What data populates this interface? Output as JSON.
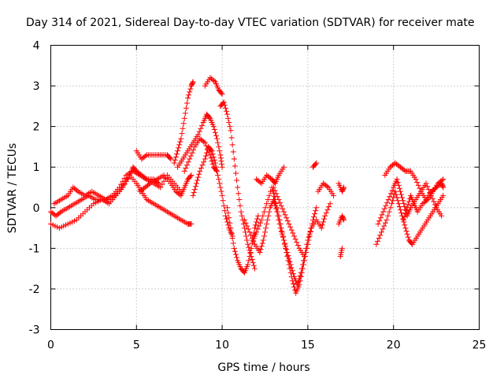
{
  "chart_data": {
    "type": "scatter",
    "title": "Day 314 of 2021, Sidereal Day-to-day VTEC variation (SDTVAR) for receiver mate",
    "xlabel": "GPS time / hours",
    "ylabel": "SDTVAR / TECUs",
    "xlim": [
      0,
      25
    ],
    "ylim": [
      -3,
      4
    ],
    "xticks": [
      "0",
      "5",
      "10",
      "15",
      "20",
      "25"
    ],
    "yticks": [
      "-3",
      "-2",
      "-1",
      "0",
      "1",
      "2",
      "3",
      "4"
    ],
    "grid": true,
    "marker": "+",
    "color": "#ff0000",
    "series": [
      {
        "points": [
          [
            0.0,
            -0.4
          ],
          [
            0.5,
            -0.5
          ],
          [
            1.0,
            -0.4
          ],
          [
            1.5,
            -0.3
          ],
          [
            2.0,
            -0.1
          ],
          [
            2.5,
            0.1
          ],
          [
            3.0,
            0.2
          ],
          [
            3.5,
            0.2
          ],
          [
            4.0,
            0.4
          ],
          [
            4.3,
            0.6
          ],
          [
            4.6,
            0.8
          ],
          [
            5.0,
            0.6
          ],
          [
            5.3,
            0.4
          ],
          [
            5.6,
            0.2
          ],
          [
            6.0,
            0.1
          ],
          [
            6.4,
            0.0
          ],
          [
            6.8,
            -0.1
          ],
          [
            7.2,
            -0.2
          ],
          [
            7.6,
            -0.3
          ],
          [
            8.0,
            -0.4
          ],
          [
            8.2,
            -0.4
          ]
        ]
      },
      {
        "points": [
          [
            0.0,
            -0.1
          ],
          [
            0.3,
            -0.2
          ],
          [
            0.6,
            -0.1
          ],
          [
            1.0,
            0.0
          ],
          [
            1.4,
            0.1
          ],
          [
            1.8,
            0.2
          ],
          [
            2.2,
            0.3
          ],
          [
            2.6,
            0.2
          ],
          [
            3.0,
            0.2
          ],
          [
            3.4,
            0.1
          ],
          [
            3.8,
            0.3
          ],
          [
            4.2,
            0.5
          ],
          [
            4.6,
            0.8
          ],
          [
            4.8,
            1.0
          ],
          [
            5.0,
            0.9
          ],
          [
            5.3,
            0.8
          ],
          [
            5.6,
            0.7
          ],
          [
            6.0,
            0.7
          ],
          [
            6.3,
            0.6
          ]
        ]
      },
      {
        "points": [
          [
            0.2,
            0.1
          ],
          [
            0.6,
            0.2
          ],
          [
            1.0,
            0.3
          ],
          [
            1.3,
            0.5
          ],
          [
            1.6,
            0.4
          ],
          [
            2.0,
            0.3
          ],
          [
            2.4,
            0.4
          ],
          [
            2.8,
            0.3
          ],
          [
            3.2,
            0.2
          ],
          [
            3.6,
            0.3
          ],
          [
            4.0,
            0.5
          ],
          [
            4.4,
            0.8
          ],
          [
            4.8,
            0.9
          ],
          [
            5.2,
            0.8
          ],
          [
            5.6,
            0.7
          ],
          [
            6.0,
            0.6
          ],
          [
            6.4,
            0.5
          ],
          [
            6.8,
            0.8
          ],
          [
            7.2,
            0.6
          ],
          [
            7.6,
            0.4
          ]
        ]
      },
      {
        "points": [
          [
            5.0,
            1.4
          ],
          [
            5.3,
            1.2
          ],
          [
            5.6,
            1.3
          ],
          [
            6.0,
            1.3
          ],
          [
            6.4,
            1.3
          ],
          [
            6.8,
            1.3
          ],
          [
            7.0,
            1.2
          ]
        ]
      },
      {
        "points": [
          [
            5.2,
            0.4
          ],
          [
            5.5,
            0.5
          ],
          [
            5.8,
            0.6
          ],
          [
            6.2,
            0.7
          ],
          [
            6.6,
            0.8
          ],
          [
            7.0,
            0.6
          ],
          [
            7.3,
            0.4
          ],
          [
            7.6,
            0.3
          ],
          [
            7.8,
            0.5
          ],
          [
            8.0,
            0.7
          ],
          [
            8.2,
            0.8
          ]
        ]
      },
      {
        "points": [
          [
            7.2,
            1.1
          ],
          [
            7.4,
            1.4
          ],
          [
            7.6,
            1.7
          ],
          [
            7.8,
            2.2
          ],
          [
            8.0,
            2.7
          ],
          [
            8.2,
            3.0
          ],
          [
            8.3,
            3.1
          ]
        ]
      },
      {
        "points": [
          [
            7.4,
            1.0
          ],
          [
            7.7,
            1.2
          ],
          [
            8.0,
            1.4
          ],
          [
            8.3,
            1.6
          ],
          [
            8.6,
            1.8
          ],
          [
            8.9,
            2.1
          ],
          [
            9.1,
            2.3
          ],
          [
            9.3,
            2.2
          ],
          [
            9.5,
            2.0
          ],
          [
            9.7,
            1.7
          ],
          [
            9.9,
            1.3
          ],
          [
            10.0,
            1.0
          ]
        ]
      },
      {
        "points": [
          [
            7.8,
            0.9
          ],
          [
            8.1,
            1.2
          ],
          [
            8.4,
            1.5
          ],
          [
            8.7,
            1.7
          ],
          [
            9.0,
            1.6
          ],
          [
            9.3,
            1.3
          ],
          [
            9.5,
            1.0
          ],
          [
            9.7,
            0.9
          ]
        ]
      },
      {
        "points": [
          [
            8.3,
            0.3
          ],
          [
            8.5,
            0.6
          ],
          [
            8.7,
            0.9
          ],
          [
            9.0,
            1.2
          ],
          [
            9.2,
            1.5
          ],
          [
            9.4,
            1.4
          ],
          [
            9.6,
            1.1
          ],
          [
            9.8,
            0.7
          ],
          [
            10.0,
            0.3
          ],
          [
            10.2,
            -0.2
          ],
          [
            10.4,
            -0.5
          ],
          [
            10.6,
            -0.7
          ]
        ]
      },
      {
        "points": [
          [
            9.0,
            3.0
          ],
          [
            9.3,
            3.2
          ],
          [
            9.6,
            3.1
          ],
          [
            9.8,
            2.9
          ],
          [
            10.0,
            2.8
          ]
        ]
      },
      {
        "points": [
          [
            9.9,
            2.5
          ],
          [
            10.1,
            2.6
          ],
          [
            10.3,
            2.3
          ],
          [
            10.5,
            1.9
          ],
          [
            10.7,
            1.2
          ],
          [
            10.9,
            0.5
          ],
          [
            11.1,
            -0.1
          ],
          [
            11.3,
            -0.5
          ],
          [
            11.5,
            -0.9
          ],
          [
            11.7,
            -1.2
          ],
          [
            11.9,
            -1.5
          ]
        ]
      },
      {
        "points": [
          [
            10.3,
            0.0
          ],
          [
            10.5,
            -0.5
          ],
          [
            10.7,
            -1.0
          ],
          [
            10.9,
            -1.3
          ],
          [
            11.1,
            -1.5
          ],
          [
            11.3,
            -1.6
          ],
          [
            11.5,
            -1.4
          ],
          [
            11.7,
            -1.0
          ],
          [
            11.9,
            -0.5
          ],
          [
            12.1,
            -0.2
          ]
        ]
      },
      {
        "points": [
          [
            11.3,
            -0.3
          ],
          [
            11.6,
            -0.6
          ],
          [
            11.9,
            -0.9
          ],
          [
            12.2,
            -1.1
          ],
          [
            12.4,
            -0.8
          ],
          [
            12.6,
            -0.4
          ],
          [
            12.8,
            0.0
          ],
          [
            13.0,
            0.2
          ],
          [
            13.2,
            -0.1
          ],
          [
            13.4,
            -0.5
          ],
          [
            13.6,
            -0.8
          ],
          [
            13.8,
            -1.1
          ],
          [
            14.0,
            -1.4
          ],
          [
            14.2,
            -1.7
          ],
          [
            14.4,
            -1.9
          ],
          [
            14.6,
            -1.6
          ],
          [
            14.8,
            -1.2
          ],
          [
            15.0,
            -0.8
          ],
          [
            15.2,
            -0.5
          ]
        ]
      },
      {
        "points": [
          [
            11.8,
            -0.8
          ],
          [
            12.0,
            -0.6
          ],
          [
            12.3,
            -0.3
          ],
          [
            12.6,
            0.1
          ],
          [
            12.9,
            0.5
          ],
          [
            13.1,
            0.2
          ],
          [
            13.3,
            -0.2
          ],
          [
            13.5,
            -0.6
          ],
          [
            13.7,
            -1.0
          ],
          [
            13.9,
            -1.4
          ],
          [
            14.1,
            -1.8
          ],
          [
            14.3,
            -2.1
          ],
          [
            14.5,
            -1.9
          ],
          [
            14.7,
            -1.5
          ],
          [
            14.9,
            -1.1
          ],
          [
            15.1,
            -0.7
          ],
          [
            15.3,
            -0.3
          ],
          [
            15.5,
            0.0
          ]
        ]
      },
      {
        "points": [
          [
            12.0,
            0.7
          ],
          [
            12.3,
            0.6
          ],
          [
            12.6,
            0.8
          ],
          [
            12.9,
            0.7
          ],
          [
            13.1,
            0.6
          ],
          [
            13.3,
            0.8
          ],
          [
            13.6,
            1.0
          ]
        ]
      },
      {
        "points": [
          [
            13.0,
            0.5
          ],
          [
            13.3,
            0.2
          ],
          [
            13.6,
            -0.1
          ],
          [
            13.9,
            -0.4
          ],
          [
            14.2,
            -0.7
          ],
          [
            14.5,
            -1.0
          ],
          [
            14.8,
            -1.2
          ]
        ]
      },
      {
        "points": [
          [
            15.2,
            -0.5
          ],
          [
            15.5,
            -0.3
          ],
          [
            15.8,
            -0.5
          ],
          [
            16.0,
            -0.2
          ],
          [
            16.3,
            0.1
          ]
        ]
      },
      {
        "points": [
          [
            15.3,
            1.0
          ],
          [
            15.5,
            1.1
          ]
        ]
      },
      {
        "points": [
          [
            15.6,
            0.4
          ],
          [
            15.9,
            0.6
          ],
          [
            16.2,
            0.5
          ],
          [
            16.5,
            0.3
          ]
        ]
      },
      {
        "points": [
          [
            16.8,
            0.6
          ],
          [
            17.0,
            0.4
          ],
          [
            17.1,
            0.5
          ]
        ]
      },
      {
        "points": [
          [
            16.9,
            -1.2
          ],
          [
            17.0,
            -1.0
          ]
        ]
      },
      {
        "points": [
          [
            16.8,
            -0.4
          ],
          [
            17.0,
            -0.2
          ],
          [
            17.1,
            -0.3
          ]
        ]
      },
      {
        "points": [
          [
            19.0,
            -0.9
          ],
          [
            19.3,
            -0.6
          ],
          [
            19.6,
            -0.3
          ],
          [
            19.9,
            0.1
          ],
          [
            20.1,
            0.4
          ],
          [
            20.3,
            0.1
          ],
          [
            20.5,
            -0.2
          ],
          [
            20.7,
            -0.5
          ],
          [
            20.9,
            -0.8
          ],
          [
            21.1,
            -0.9
          ],
          [
            21.4,
            -0.7
          ],
          [
            21.7,
            -0.5
          ],
          [
            22.0,
            -0.3
          ],
          [
            22.3,
            -0.1
          ],
          [
            22.6,
            0.1
          ],
          [
            22.9,
            0.3
          ]
        ]
      },
      {
        "points": [
          [
            19.1,
            -0.4
          ],
          [
            19.4,
            -0.1
          ],
          [
            19.7,
            0.2
          ],
          [
            20.0,
            0.5
          ],
          [
            20.2,
            0.7
          ],
          [
            20.4,
            0.4
          ],
          [
            20.6,
            0.1
          ],
          [
            20.8,
            -0.2
          ],
          [
            21.0,
            0.0
          ],
          [
            21.3,
            0.2
          ],
          [
            21.6,
            0.4
          ],
          [
            21.9,
            0.6
          ],
          [
            22.2,
            0.3
          ],
          [
            22.5,
            -0.0
          ],
          [
            22.8,
            -0.2
          ]
        ]
      },
      {
        "points": [
          [
            19.5,
            0.8
          ],
          [
            19.8,
            1.0
          ],
          [
            20.1,
            1.1
          ],
          [
            20.4,
            1.0
          ],
          [
            20.7,
            0.9
          ],
          [
            21.0,
            0.9
          ],
          [
            21.3,
            0.7
          ],
          [
            21.6,
            0.4
          ],
          [
            21.9,
            0.2
          ],
          [
            22.2,
            0.4
          ],
          [
            22.5,
            0.5
          ],
          [
            22.8,
            0.6
          ],
          [
            22.9,
            0.5
          ]
        ]
      },
      {
        "points": [
          [
            20.6,
            -0.3
          ],
          [
            20.8,
            0.0
          ],
          [
            21.0,
            0.3
          ],
          [
            21.2,
            0.1
          ],
          [
            21.4,
            -0.1
          ],
          [
            21.7,
            0.1
          ],
          [
            22.0,
            0.2
          ],
          [
            22.3,
            0.4
          ],
          [
            22.6,
            0.6
          ],
          [
            22.9,
            0.7
          ]
        ]
      }
    ]
  }
}
